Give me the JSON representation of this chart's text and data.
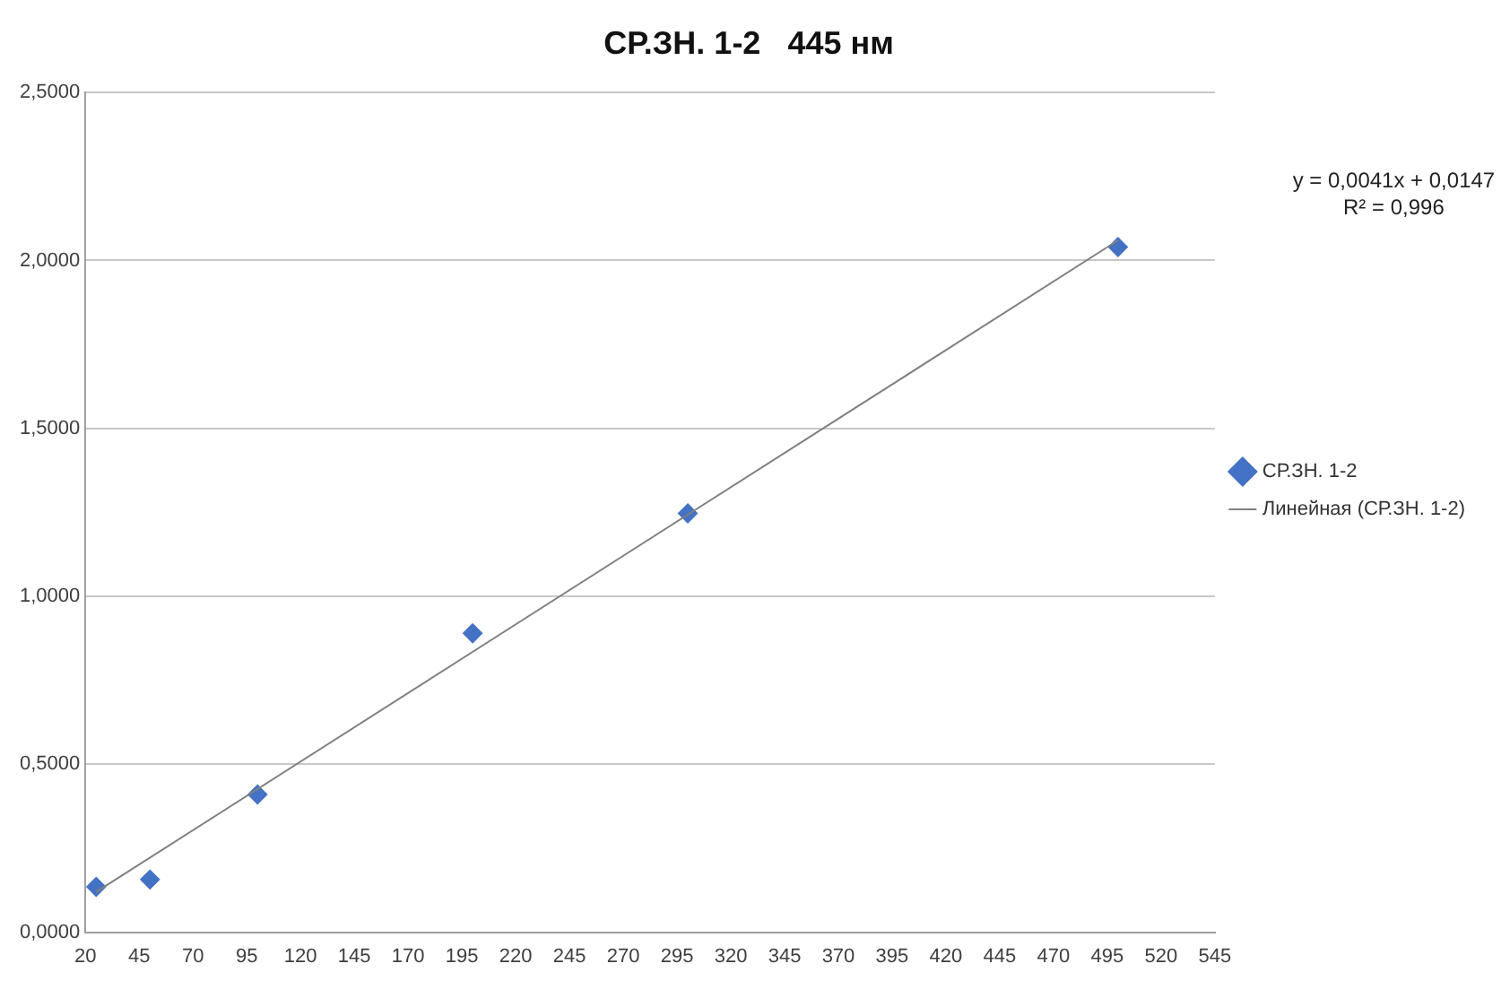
{
  "chart_data": {
    "type": "scatter",
    "title": "СР.ЗН. 1-2   445 нм",
    "series": [
      {
        "name": "СР.ЗН. 1-2",
        "color": "#4472c4",
        "x": [
          25,
          50,
          100,
          200,
          300,
          500
        ],
        "values": [
          0.135,
          0.157,
          0.41,
          0.89,
          1.247,
          2.04
        ],
        "marker": "diamond"
      },
      {
        "name": "Линейная (СР.ЗН. 1-2)",
        "type": "line",
        "color": "#808080",
        "x": [
          25,
          500
        ],
        "values": [
          0.12,
          2.06
        ],
        "marker": "none",
        "line_style": "solid"
      }
    ],
    "xlim": [
      20,
      545
    ],
    "xticks": [
      20,
      45,
      70,
      95,
      120,
      145,
      170,
      195,
      220,
      245,
      270,
      295,
      320,
      345,
      370,
      395,
      420,
      445,
      470,
      495,
      520,
      545
    ],
    "ylim": [
      0,
      2.5
    ],
    "yticks": [
      {
        "value": 0,
        "label": "0,0000"
      },
      {
        "value": 0.5,
        "label": "0,5000"
      },
      {
        "value": 1,
        "label": "1,0000"
      },
      {
        "value": 1.5,
        "label": "1,5000"
      },
      {
        "value": 2,
        "label": "2,0000"
      },
      {
        "value": 2.5,
        "label": "2,5000"
      }
    ],
    "grid": "y",
    "legend": "right",
    "annotations": [
      "y = 0,0041x + 0,0147",
      "R² = 0,996"
    ]
  }
}
